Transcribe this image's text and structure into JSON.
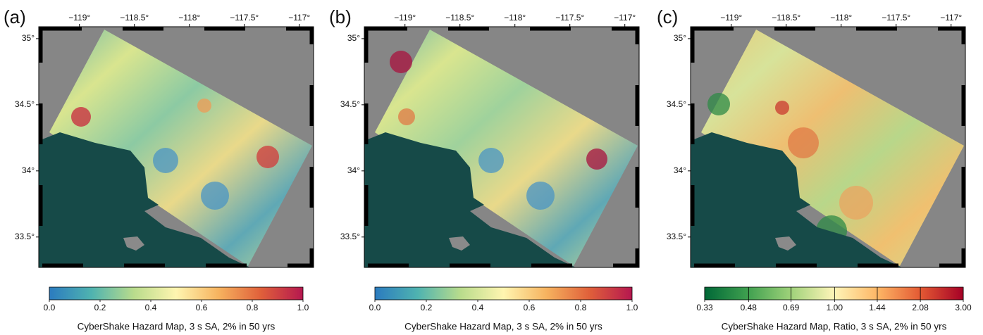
{
  "panels": [
    {
      "label": "(a)",
      "xlim": [
        -119.37,
        -116.87
      ],
      "ylim": [
        33.27,
        35.09
      ],
      "xticks": [
        {
          "value": -119,
          "label": "−119°"
        },
        {
          "value": -118.5,
          "label": "−118.5°"
        },
        {
          "value": -118,
          "label": "−118°"
        },
        {
          "value": -117.5,
          "label": "−117.5°"
        },
        {
          "value": -117,
          "label": "−117°"
        }
      ],
      "yticks": [
        {
          "value": 35,
          "label": "35°"
        },
        {
          "value": 34.5,
          "label": "34.5°"
        },
        {
          "value": 34,
          "label": "34°"
        },
        {
          "value": 33.5,
          "label": "33.5°"
        }
      ],
      "colorbar": {
        "lim": [
          0,
          1
        ],
        "scale": "linear",
        "colormap": [
          "#2b7bbf",
          "#4fb3b0",
          "#b9dc8c",
          "#fff5b0",
          "#f6b35f",
          "#e0603a",
          "#b5174f"
        ],
        "ticks": [
          {
            "value": 0,
            "label": "0.0"
          },
          {
            "value": 0.2,
            "label": "0.2"
          },
          {
            "value": 0.4,
            "label": "0.4"
          },
          {
            "value": 0.6,
            "label": "0.6"
          },
          {
            "value": 0.8,
            "label": "0.8"
          },
          {
            "value": 1,
            "label": "1.0"
          }
        ],
        "label": "CyberShake Hazard Map, 3 s SA, 2% in 50 yrs"
      }
    },
    {
      "label": "(b)",
      "xlim": [
        -119.37,
        -116.87
      ],
      "ylim": [
        33.27,
        35.09
      ],
      "xticks": [
        {
          "value": -119,
          "label": "−119°"
        },
        {
          "value": -118.5,
          "label": "−118.5°"
        },
        {
          "value": -118,
          "label": "−118°"
        },
        {
          "value": -117.5,
          "label": "−117.5°"
        },
        {
          "value": -117,
          "label": "−117°"
        }
      ],
      "yticks": [
        {
          "value": 35,
          "label": "35°"
        },
        {
          "value": 34.5,
          "label": "34.5°"
        },
        {
          "value": 34,
          "label": "34°"
        },
        {
          "value": 33.5,
          "label": "33.5°"
        }
      ],
      "colorbar": {
        "lim": [
          0,
          1
        ],
        "scale": "linear",
        "colormap": [
          "#2b7bbf",
          "#4fb3b0",
          "#b9dc8c",
          "#fff5b0",
          "#f6b35f",
          "#e0603a",
          "#b5174f"
        ],
        "ticks": [
          {
            "value": 0,
            "label": "0.0"
          },
          {
            "value": 0.2,
            "label": "0.2"
          },
          {
            "value": 0.4,
            "label": "0.4"
          },
          {
            "value": 0.6,
            "label": "0.6"
          },
          {
            "value": 0.8,
            "label": "0.8"
          },
          {
            "value": 1,
            "label": "1.0"
          }
        ],
        "label": "CyberShake Hazard Map, 3 s SA, 2% in 50 yrs"
      }
    },
    {
      "label": "(c)",
      "xlim": [
        -119.37,
        -116.87
      ],
      "ylim": [
        33.27,
        35.09
      ],
      "xticks": [
        {
          "value": -119,
          "label": "−119°"
        },
        {
          "value": -118.5,
          "label": "−118.5°"
        },
        {
          "value": -118,
          "label": "−118°"
        },
        {
          "value": -117.5,
          "label": "−117.5°"
        },
        {
          "value": -117,
          "label": "−117°"
        }
      ],
      "yticks": [
        {
          "value": 35,
          "label": "35°"
        },
        {
          "value": 34.5,
          "label": "34.5°"
        },
        {
          "value": 34,
          "label": "34°"
        },
        {
          "value": 33.5,
          "label": "33.5°"
        }
      ],
      "colorbar": {
        "lim": [
          0.33,
          3
        ],
        "scale": "log",
        "colormap": [
          "#006837",
          "#3fa04f",
          "#9fd27a",
          "#fff5b8",
          "#fdb766",
          "#e45a33",
          "#a50026"
        ],
        "ticks": [
          0.33,
          0.48,
          0.69,
          {
            "value": 1,
            "label": "1.00"
          },
          1.44,
          2.08,
          {
            "value": 3,
            "label": "3.00"
          }
        ],
        "label": "CyberShake Hazard Map, Ratio, 3 s SA, 2% in 50 yrs"
      }
    }
  ]
}
